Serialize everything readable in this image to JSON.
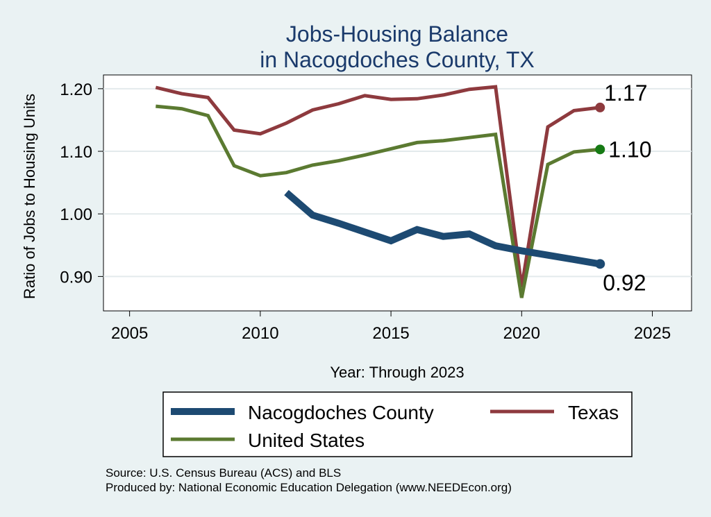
{
  "chart_data": {
    "type": "line",
    "title": [
      "Jobs-Housing Balance",
      "in Nacogdoches County, TX"
    ],
    "xlabel": "Year: Through 2023",
    "ylabel": "Ratio of Jobs to Housing Units",
    "xlim": [
      2004,
      2026.5
    ],
    "ylim": [
      0.845,
      1.222
    ],
    "xticks": [
      2005,
      2010,
      2015,
      2020,
      2025
    ],
    "yticks": [
      0.9,
      1.0,
      1.1,
      1.2
    ],
    "ytick_labels": [
      "0.90",
      "1.00",
      "1.10",
      "1.20"
    ],
    "grid": "horizontal",
    "series": [
      {
        "name": "Texas",
        "color": "#8e3a3e",
        "width": 5,
        "x": [
          2006,
          2007,
          2008,
          2009,
          2010,
          2011,
          2012,
          2013,
          2014,
          2015,
          2016,
          2017,
          2018,
          2019,
          2020,
          2021,
          2022,
          2023
        ],
        "y": [
          1.202,
          1.192,
          1.186,
          1.134,
          1.128,
          1.145,
          1.166,
          1.176,
          1.189,
          1.183,
          1.184,
          1.19,
          1.199,
          1.203,
          0.883,
          1.139,
          1.165,
          1.17
        ],
        "end_label": "1.17"
      },
      {
        "name": "United States",
        "color": "#5b7a31",
        "width": 5,
        "x": [
          2006,
          2007,
          2008,
          2009,
          2010,
          2011,
          2012,
          2013,
          2014,
          2015,
          2016,
          2017,
          2018,
          2019,
          2020,
          2021,
          2022,
          2023
        ],
        "y": [
          1.172,
          1.168,
          1.157,
          1.077,
          1.061,
          1.066,
          1.078,
          1.085,
          1.094,
          1.104,
          1.114,
          1.117,
          1.122,
          1.127,
          0.866,
          1.079,
          1.099,
          1.103
        ],
        "end_label": "1.10",
        "end_marker_color": "#167a14"
      },
      {
        "name": "Nacogdoches County",
        "color": "#1d4a72",
        "width": 10,
        "x": [
          2011,
          2012,
          2013,
          2014,
          2015,
          2016,
          2017,
          2018,
          2019,
          2020,
          2021,
          2022,
          2023
        ],
        "y": [
          1.034,
          0.998,
          0.985,
          0.971,
          0.957,
          0.975,
          0.964,
          0.968,
          0.949,
          0.941,
          0.934,
          0.927,
          0.92
        ],
        "end_label": "0.92"
      }
    ],
    "legend": {
      "placement": "bottom",
      "entries": [
        "Nacogdoches County",
        "Texas",
        "United States"
      ]
    },
    "notes": [
      "Source: U.S. Census Bureau (ACS) and BLS",
      "Produced by: National Economic Education Delegation (www.NEEDEcon.org)"
    ]
  }
}
